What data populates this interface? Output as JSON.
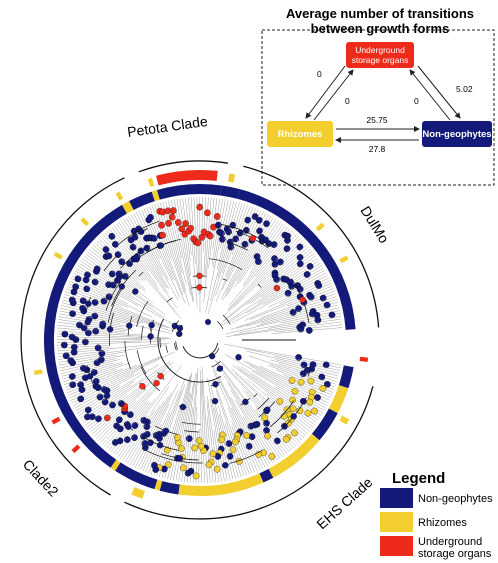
{
  "transitions": {
    "title_line1": "Average number of transitions",
    "title_line2": "between growth forms",
    "box_underground_line1": "Underground",
    "box_underground_line2": "storage organs",
    "box_rhizomes": "Rhizomes",
    "box_nongeophytes": "Non-geophytes",
    "val_usl_to_rhz": "0",
    "val_rhz_to_usl": "0",
    "val_usl_to_ng": "5.02",
    "val_ng_to_usl": "0",
    "val_rhz_to_ng": "25.75",
    "val_ng_to_rhz": "27.8"
  },
  "clades": {
    "petota": "Petota Clade",
    "dulmo": "DulMo",
    "ehs": "EHS Clade",
    "clade2": "Clade2"
  },
  "legend": {
    "title": "Legend",
    "items": [
      {
        "label": "Non-geophytes",
        "color": "#141a7a"
      },
      {
        "label": "Rhizomes",
        "color": "#f2cf2f"
      },
      {
        "label_line1": "Underground",
        "label_line2": "storage organs",
        "color": "#ee2a1a"
      }
    ]
  },
  "colors": {
    "nongeophyte": "#141a7a",
    "rhizome": "#f2cf2f",
    "underground": "#ee2a1a",
    "branch": "#111111"
  },
  "icons": {
    "tree": "phylogeny-tree-icon"
  }
}
